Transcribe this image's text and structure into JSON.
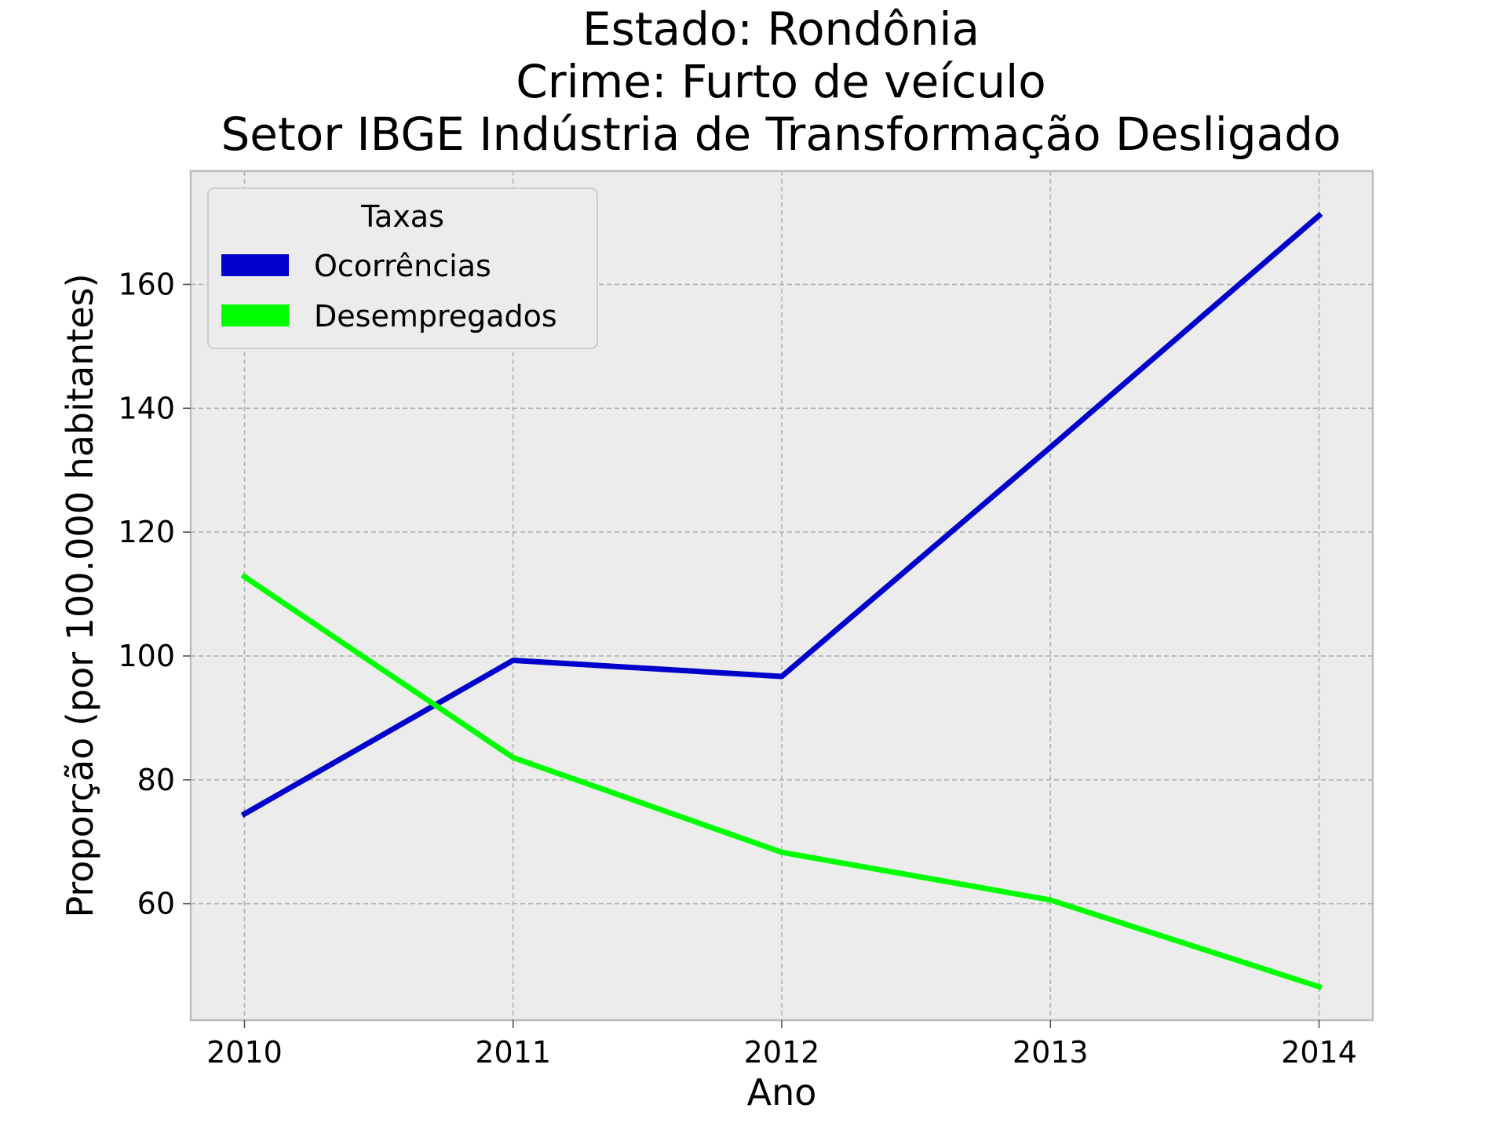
{
  "chart_data": {
    "type": "line",
    "title_lines": [
      "Estado: Rondônia",
      "Crime: Furto de veículo",
      "Setor IBGE  Indústria de Transformação   Desligado"
    ],
    "xlabel": "Ano",
    "ylabel": "Proporção (por 100.000 habitantes)",
    "x": [
      2010,
      2011,
      2012,
      2013,
      2014
    ],
    "x_tick_labels": [
      "2010",
      "2011",
      "2012",
      "2013",
      "2014"
    ],
    "y_ticks": [
      60,
      80,
      100,
      120,
      140,
      160
    ],
    "y_tick_labels": [
      "60",
      "80",
      "100",
      "120",
      "140",
      "160"
    ],
    "xlim": [
      2009.8,
      2014.2
    ],
    "ylim": [
      41.2,
      178.3
    ],
    "grid": true,
    "legend": {
      "title": "Taxas",
      "position": "top-left"
    },
    "background_color": "#ececec",
    "series": [
      {
        "name": "Ocorrências",
        "color": "#0000cc",
        "values": [
          74.5,
          99.3,
          96.7,
          133.7,
          171.1
        ]
      },
      {
        "name": "Desempregados",
        "color": "#00ff00",
        "values": [
          112.8,
          83.6,
          68.3,
          60.6,
          46.6
        ]
      }
    ]
  }
}
